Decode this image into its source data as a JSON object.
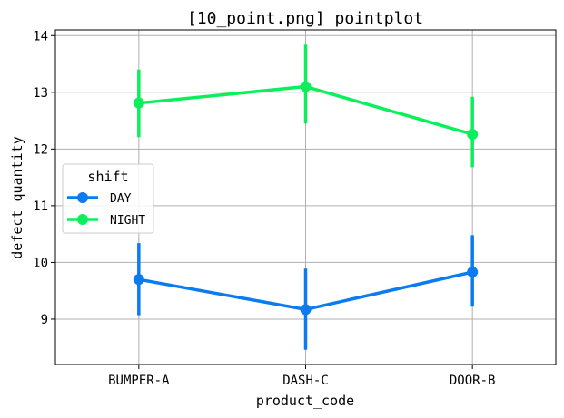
{
  "chart_data": {
    "type": "line",
    "title": "[10_point.png] pointplot",
    "xlabel": "product_code",
    "ylabel": "defect_quantity",
    "categories": [
      "BUMPER-A",
      "DASH-C",
      "DOOR-B"
    ],
    "ylim": [
      8.2,
      14.1
    ],
    "yticks": [
      9,
      10,
      11,
      12,
      13,
      14
    ],
    "grid": true,
    "legend": {
      "title": "shift",
      "placement": "center-left"
    },
    "series": [
      {
        "name": "DAY",
        "color": "#0a7cf0",
        "values": [
          9.7,
          9.17,
          9.83
        ],
        "err_low": [
          9.07,
          8.46,
          9.22
        ],
        "err_high": [
          10.34,
          9.89,
          10.48
        ]
      },
      {
        "name": "NIGHT",
        "color": "#0af05a",
        "values": [
          12.81,
          13.1,
          12.26
        ],
        "err_low": [
          12.21,
          12.45,
          11.68
        ],
        "err_high": [
          13.4,
          13.84,
          12.92
        ]
      }
    ]
  }
}
